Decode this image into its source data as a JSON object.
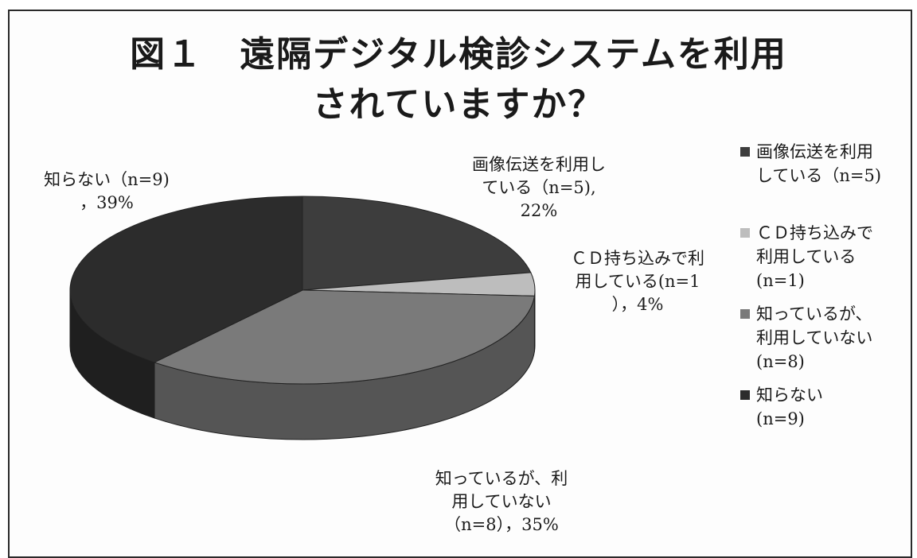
{
  "chart_data": {
    "type": "pie",
    "title_lines": [
      "図１　遠隔デジタル検診システムを利用",
      "されていますか？"
    ],
    "three_d": true,
    "slices": [
      {
        "name": "画像伝送を利用している（n=5)",
        "value": 22,
        "color": "#3d3d3d",
        "label_lines": [
          "画像伝送を利用し",
          "ている（n=5),",
          "22%"
        ],
        "legend_lines": [
          "画像伝送を利用",
          "している（n=5)"
        ]
      },
      {
        "name": "ＣＤ持ち込みで利用している(n=1)",
        "value": 4,
        "color": "#bdbdbd",
        "label_lines": [
          "ＣＤ持ち込みで利",
          "用している(n=1",
          "），4%"
        ],
        "legend_lines": [
          "ＣＤ持ち込みで",
          "利用している",
          "(n=1)"
        ]
      },
      {
        "name": "知っているが、利用していない(n=8)",
        "value": 35,
        "color": "#7a7a7a",
        "label_lines": [
          "知っているが、利",
          "用していない",
          "（n=8），35%"
        ],
        "legend_lines": [
          "知っているが、",
          "利用していない",
          "(n=8)"
        ]
      },
      {
        "name": "知らない（n=9)",
        "value": 39,
        "color": "#2c2c2c",
        "label_lines": [
          "知らない（n=9)",
          "，39%"
        ],
        "legend_lines": [
          "知らない",
          "(n=9)"
        ]
      }
    ],
    "legend_position": "right"
  }
}
